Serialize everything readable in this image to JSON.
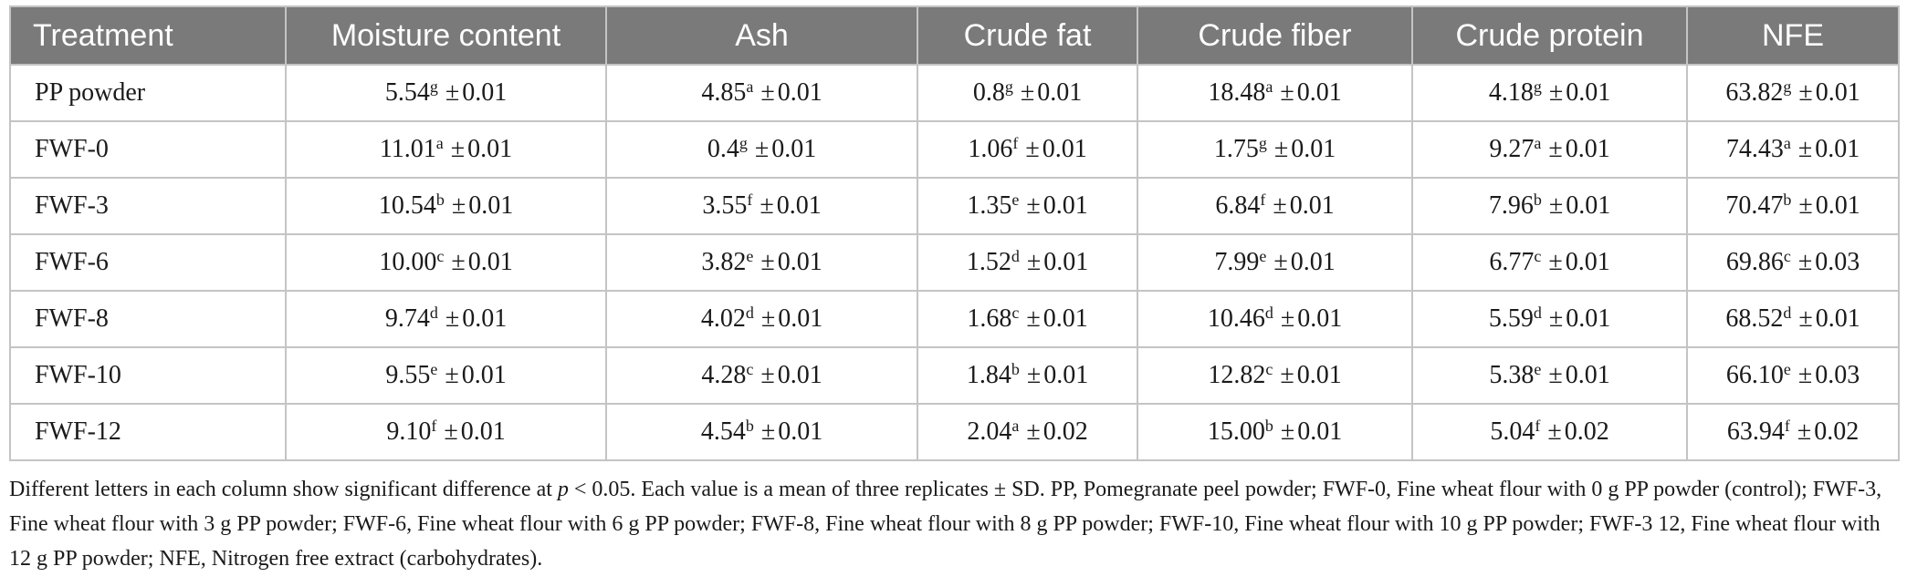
{
  "table": {
    "headers": [
      "Treatment",
      "Moisture content",
      "Ash",
      "Crude fat",
      "Crude fiber",
      "Crude protein",
      "NFE"
    ],
    "pm_symbol": "±",
    "rows": [
      {
        "treatment": "PP powder",
        "cells": [
          {
            "value": "5.54",
            "sup": "g",
            "sd": "0.01"
          },
          {
            "value": "4.85",
            "sup": "a",
            "sd": "0.01"
          },
          {
            "value": "0.8",
            "sup": "g",
            "sd": "0.01"
          },
          {
            "value": "18.48",
            "sup": "a",
            "sd": "0.01"
          },
          {
            "value": "4.18",
            "sup": "g",
            "sd": "0.01"
          },
          {
            "value": "63.82",
            "sup": "g",
            "sd": "0.01"
          }
        ]
      },
      {
        "treatment": "FWF-0",
        "cells": [
          {
            "value": "11.01",
            "sup": "a",
            "sd": "0.01"
          },
          {
            "value": "0.4",
            "sup": "g",
            "sd": "0.01"
          },
          {
            "value": "1.06",
            "sup": "f",
            "sd": "0.01"
          },
          {
            "value": "1.75",
            "sup": "g",
            "sd": "0.01"
          },
          {
            "value": "9.27",
            "sup": "a",
            "sd": "0.01"
          },
          {
            "value": "74.43",
            "sup": "a",
            "sd": "0.01"
          }
        ]
      },
      {
        "treatment": "FWF-3",
        "cells": [
          {
            "value": "10.54",
            "sup": "b",
            "sd": "0.01"
          },
          {
            "value": "3.55",
            "sup": "f",
            "sd": "0.01"
          },
          {
            "value": "1.35",
            "sup": "e",
            "sd": "0.01"
          },
          {
            "value": "6.84",
            "sup": "f",
            "sd": "0.01"
          },
          {
            "value": "7.96",
            "sup": "b",
            "sd": "0.01"
          },
          {
            "value": "70.47",
            "sup": "b",
            "sd": "0.01"
          }
        ]
      },
      {
        "treatment": "FWF-6",
        "cells": [
          {
            "value": "10.00",
            "sup": "c",
            "sd": "0.01"
          },
          {
            "value": "3.82",
            "sup": "e",
            "sd": "0.01"
          },
          {
            "value": "1.52",
            "sup": "d",
            "sd": "0.01"
          },
          {
            "value": "7.99",
            "sup": "e",
            "sd": "0.01"
          },
          {
            "value": "6.77",
            "sup": "c",
            "sd": "0.01"
          },
          {
            "value": "69.86",
            "sup": "c",
            "sd": "0.03"
          }
        ]
      },
      {
        "treatment": "FWF-8",
        "cells": [
          {
            "value": "9.74",
            "sup": "d",
            "sd": "0.01"
          },
          {
            "value": "4.02",
            "sup": "d",
            "sd": "0.01"
          },
          {
            "value": "1.68",
            "sup": "c",
            "sd": "0.01"
          },
          {
            "value": "10.46",
            "sup": "d",
            "sd": "0.01"
          },
          {
            "value": "5.59",
            "sup": "d",
            "sd": "0.01"
          },
          {
            "value": "68.52",
            "sup": "d",
            "sd": "0.01"
          }
        ]
      },
      {
        "treatment": "FWF-10",
        "cells": [
          {
            "value": "9.55",
            "sup": "e",
            "sd": "0.01"
          },
          {
            "value": "4.28",
            "sup": "c",
            "sd": "0.01"
          },
          {
            "value": "1.84",
            "sup": "b",
            "sd": "0.01"
          },
          {
            "value": "12.82",
            "sup": "c",
            "sd": "0.01"
          },
          {
            "value": "5.38",
            "sup": "e",
            "sd": "0.01"
          },
          {
            "value": "66.10",
            "sup": "e",
            "sd": "0.03"
          }
        ]
      },
      {
        "treatment": "FWF-12",
        "cells": [
          {
            "value": "9.10",
            "sup": "f",
            "sd": "0.01"
          },
          {
            "value": "4.54",
            "sup": "b",
            "sd": "0.01"
          },
          {
            "value": "2.04",
            "sup": "a",
            "sd": "0.02"
          },
          {
            "value": "15.00",
            "sup": "b",
            "sd": "0.01"
          },
          {
            "value": "5.04",
            "sup": "f",
            "sd": "0.02"
          },
          {
            "value": "63.94",
            "sup": "f",
            "sd": "0.02"
          }
        ]
      }
    ]
  },
  "footnote": {
    "part1": "Different letters in each column show significant difference at ",
    "p_symbol": "p",
    "part2": " < 0.05. Each value is a mean of three replicates ± SD. PP, Pomegranate peel powder; FWF-0, Fine wheat flour with 0 g PP powder (control); FWF-3, Fine wheat flour with 3 g PP powder; FWF-6, Fine wheat flour with 6 g PP powder; FWF-8, Fine wheat flour with 8 g PP powder; FWF-10, Fine wheat flour with 10 g PP powder; FWF-3 12, Fine wheat flour with 12 g PP powder; NFE, Nitrogen free extract (carbohydrates)."
  },
  "colors": {
    "header_bg": "#7a7a7a",
    "header_text": "#ffffff",
    "grid": "#c4c4c4",
    "body_text": "#1a1a1a"
  }
}
